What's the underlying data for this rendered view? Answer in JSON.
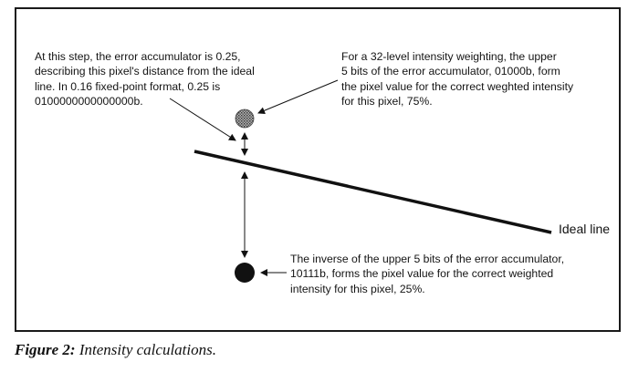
{
  "annotations": {
    "error_accumulator_note": [
      "At this step, the error accumulator is 0.25,",
      "describing this pixel's distance from the ideal",
      "line. In 0.16 fixed-point format, 0.25 is",
      "0100000000000000b."
    ],
    "upper_pixel_note": [
      "For a 32-level intensity weighting, the upper",
      "5 bits of the error accumulator, 01000b, form",
      "the pixel value for the correct weghted intensity",
      "for this pixel, 75%."
    ],
    "lower_pixel_note": [
      "The inverse of the upper 5 bits of the error accumulator,",
      "10111b, forms the pixel value for the correct weighted",
      "intensity for this pixel, 25%."
    ]
  },
  "ideal_line_label": "Ideal line",
  "pixels": {
    "upper": {
      "intensity_percent": 75,
      "fill_style": "hatched-gray"
    },
    "lower": {
      "intensity_percent": 25,
      "fill_style": "solid-black"
    }
  },
  "caption": {
    "label": "Figure 2:",
    "text": " Intensity calculations."
  },
  "colors": {
    "ink": "#111111",
    "frame": "#1a1a1a",
    "background": "#ffffff",
    "upper_pixel_gray": "#8a8a8a"
  }
}
